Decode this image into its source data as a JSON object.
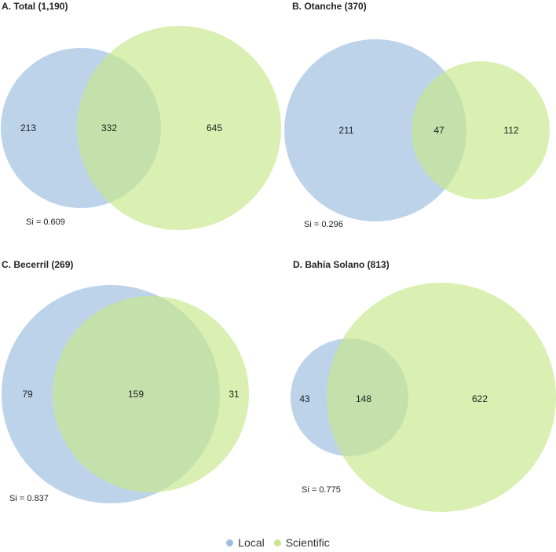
{
  "colors": {
    "local": "#9dbee0",
    "scientific": "#c8e88e"
  },
  "legend": {
    "local_label": "Local",
    "scientific_label": "Scientific"
  },
  "chart_data": [
    {
      "type": "venn",
      "title": "A. Total (1,190)",
      "sets": [
        "Local",
        "Scientific"
      ],
      "only_local": 213,
      "overlap": 332,
      "only_scientific": 645,
      "si_label": "Si = 0.609"
    },
    {
      "type": "venn",
      "title": "B. Otanche (370)",
      "sets": [
        "Local",
        "Scientific"
      ],
      "only_local": 211,
      "overlap": 47,
      "only_scientific": 112,
      "si_label": "Si = 0.296"
    },
    {
      "type": "venn",
      "title": "C. Becerril (269)",
      "sets": [
        "Local",
        "Scientific"
      ],
      "only_local": 79,
      "overlap": 159,
      "only_scientific": 31,
      "si_label": "Si = 0.837"
    },
    {
      "type": "venn",
      "title": "D. Bahía Solano (813)",
      "sets": [
        "Local",
        "Scientific"
      ],
      "only_local": 43,
      "overlap": 148,
      "only_scientific": 622,
      "si_label": "Si = 0.775"
    }
  ]
}
